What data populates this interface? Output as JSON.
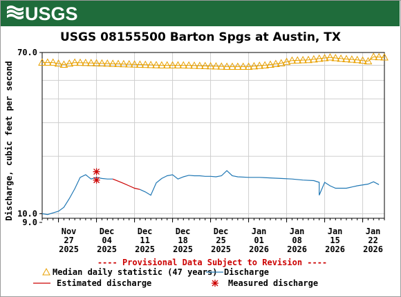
{
  "header": {
    "logo_text": "USGS",
    "banner_color": "#1f6c3b"
  },
  "chart_data": {
    "type": "line",
    "title": "USGS 08155500 Barton Spgs at Austin, TX",
    "ylabel": "Discharge, cubic feet per second",
    "ylim": [
      9.0,
      70.0
    ],
    "y_scale": "log",
    "y_tick_labels": [
      "70.0",
      "10.0",
      "9.0"
    ],
    "x_range": [
      "2025-11-24",
      "2026-01-26"
    ],
    "x_ticks": [
      {
        "date": "2025-11-27",
        "label1": "Nov",
        "label2": "27",
        "label3": "2025"
      },
      {
        "date": "2025-12-04",
        "label1": "Dec",
        "label2": "04",
        "label3": "2025"
      },
      {
        "date": "2025-12-11",
        "label1": "Dec",
        "label2": "11",
        "label3": "2025"
      },
      {
        "date": "2025-12-18",
        "label1": "Dec",
        "label2": "18",
        "label3": "2025"
      },
      {
        "date": "2025-12-25",
        "label1": "Dec",
        "label2": "25",
        "label3": "2025"
      },
      {
        "date": "2026-01-01",
        "label1": "Jan",
        "label2": "01",
        "label3": "2026"
      },
      {
        "date": "2026-01-08",
        "label1": "Jan",
        "label2": "08",
        "label3": "2026"
      },
      {
        "date": "2026-01-15",
        "label1": "Jan",
        "label2": "15",
        "label3": "2026"
      },
      {
        "date": "2026-01-22",
        "label1": "Jan",
        "label2": "22",
        "label3": "2026"
      }
    ],
    "grid": true,
    "provisional_note": "---- Provisional Data Subject to Revision ----",
    "colors": {
      "median": "#e8a000",
      "discharge": "#1f77b4",
      "estimated": "#cc0000",
      "measured": "#cc0000"
    },
    "series": [
      {
        "name": "Median daily statistic (47 years)",
        "kind": "median",
        "points": [
          [
            "2025-11-24",
            62
          ],
          [
            "2025-11-26",
            62
          ],
          [
            "2025-11-28",
            60.5
          ],
          [
            "2025-11-30",
            62
          ],
          [
            "2025-12-04",
            61.5
          ],
          [
            "2025-12-08",
            61
          ],
          [
            "2025-12-12",
            60.5
          ],
          [
            "2025-12-16",
            60
          ],
          [
            "2025-12-20",
            60
          ],
          [
            "2025-12-24",
            59.5
          ],
          [
            "2025-12-28",
            59
          ],
          [
            "2026-01-01",
            59
          ],
          [
            "2026-01-04",
            60
          ],
          [
            "2026-01-07",
            61.5
          ],
          [
            "2026-01-09",
            63.5
          ],
          [
            "2026-01-12",
            64
          ],
          [
            "2026-01-14",
            65
          ],
          [
            "2026-01-16",
            66
          ],
          [
            "2026-01-18",
            65
          ],
          [
            "2026-01-21",
            64
          ],
          [
            "2026-01-23",
            63
          ],
          [
            "2026-01-24",
            66.5
          ],
          [
            "2026-01-26",
            66
          ]
        ]
      },
      {
        "name": "Discharge",
        "kind": "discharge",
        "segments": [
          [
            [
              "2025-11-24",
              10
            ],
            [
              "2025-11-25",
              9.9
            ],
            [
              "2025-11-26",
              10.1
            ],
            [
              "2025-11-27",
              10.3
            ],
            [
              "2025-11-28",
              10.8
            ],
            [
              "2025-11-29",
              12
            ],
            [
              "2025-11-30",
              13.5
            ],
            [
              "2025-12-01",
              15.5
            ],
            [
              "2025-12-02",
              16
            ],
            [
              "2025-12-03",
              15.2
            ],
            [
              "2025-12-04",
              15.5
            ],
            [
              "2025-12-05",
              15.3
            ],
            [
              "2025-12-06",
              15.2
            ],
            [
              "2025-12-07",
              15.2
            ]
          ],
          [
            [
              "2025-12-12",
              13.4
            ],
            [
              "2025-12-13",
              13
            ],
            [
              "2025-12-14",
              12.5
            ],
            [
              "2025-12-15",
              14.5
            ],
            [
              "2025-12-16",
              15.3
            ],
            [
              "2025-12-17",
              15.8
            ],
            [
              "2025-12-18",
              16
            ],
            [
              "2025-12-19",
              15.2
            ],
            [
              "2025-12-20",
              15.6
            ],
            [
              "2025-12-21",
              15.9
            ],
            [
              "2025-12-22",
              15.8
            ],
            [
              "2025-12-23",
              15.8
            ],
            [
              "2025-12-24",
              15.7
            ],
            [
              "2025-12-25",
              15.7
            ],
            [
              "2025-12-26",
              15.6
            ],
            [
              "2025-12-27",
              15.8
            ],
            [
              "2025-12-28",
              16.8
            ],
            [
              "2025-12-29",
              15.8
            ],
            [
              "2025-12-30",
              15.6
            ],
            [
              "2026-01-01",
              15.5
            ],
            [
              "2026-01-03",
              15.5
            ],
            [
              "2026-01-05",
              15.4
            ],
            [
              "2026-01-07",
              15.3
            ],
            [
              "2026-01-09",
              15.2
            ],
            [
              "2026-01-11",
              15
            ],
            [
              "2026-01-13",
              14.9
            ],
            [
              "2026-01-14",
              14.6
            ],
            [
              "2026-01-14",
              12.5
            ],
            [
              "2026-01-15",
              14.6
            ],
            [
              "2026-01-16",
              14
            ],
            [
              "2026-01-17",
              13.6
            ],
            [
              "2026-01-19",
              13.6
            ],
            [
              "2026-01-21",
              14
            ],
            [
              "2026-01-23",
              14.3
            ],
            [
              "2026-01-24",
              14.7
            ],
            [
              "2026-01-25",
              14.2
            ]
          ]
        ]
      },
      {
        "name": "Estimated discharge",
        "kind": "estimated",
        "points": [
          [
            "2025-12-07",
            15.2
          ],
          [
            "2025-12-08",
            14.8
          ],
          [
            "2025-12-09",
            14.4
          ],
          [
            "2025-12-10",
            14.0
          ],
          [
            "2025-12-11",
            13.6
          ],
          [
            "2025-12-12",
            13.4
          ]
        ]
      },
      {
        "name": "Measured discharge",
        "kind": "measured",
        "points": [
          [
            "2025-12-04",
            16.6
          ],
          [
            "2025-12-04",
            15.0
          ]
        ]
      }
    ]
  }
}
